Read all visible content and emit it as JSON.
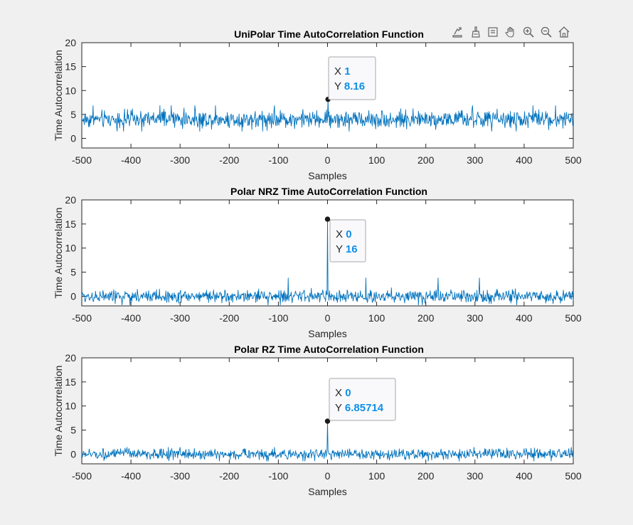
{
  "toolbar": {
    "icons": [
      "export-icon",
      "brush-icon",
      "datatip-icon",
      "pan-icon",
      "zoom-in-icon",
      "zoom-out-icon",
      "home-icon"
    ]
  },
  "colors": {
    "line": "#0072BD",
    "datatip_value": "#0F8FE8",
    "background": "#f0f0f0"
  },
  "chart_data": [
    {
      "type": "line",
      "title": "UniPolar Time AutoCorrelation Function",
      "xlabel": "Samples",
      "ylabel": "Time Autocorrelation",
      "xlim": [
        -500,
        500
      ],
      "ylim": [
        -2,
        20
      ],
      "xticks": [
        "-500",
        "-400",
        "-300",
        "-200",
        "-100",
        "0",
        "100",
        "200",
        "300",
        "400",
        "500"
      ],
      "yticks": [
        "0",
        "5",
        "10",
        "15",
        "20"
      ],
      "series": [
        {
          "description": "noisy autocorrelation, mean about 4, fluctuating roughly between 1.5 and 7, with a small peak near lag 0",
          "baseline": 4,
          "noise_range": [
            1.5,
            7
          ],
          "peak": {
            "x": 1,
            "y": 8.16
          }
        }
      ],
      "datatip": {
        "x_label": "X",
        "x_value": "1",
        "y_label": "Y",
        "y_value": "8.16",
        "x": 1,
        "y": 8.16
      }
    },
    {
      "type": "line",
      "title": "Polar NRZ Time AutoCorrelation Function",
      "xlabel": "Samples",
      "ylabel": "Time Autocorrelation",
      "xlim": [
        -500,
        500
      ],
      "ylim": [
        -2,
        20
      ],
      "xticks": [
        "-500",
        "-400",
        "-300",
        "-200",
        "-100",
        "0",
        "100",
        "200",
        "300",
        "400",
        "500"
      ],
      "yticks": [
        "0",
        "5",
        "10",
        "15",
        "20"
      ],
      "series": [
        {
          "description": "noisy autocorrelation around 0, fluctuating roughly between -1.8 and 4, with a sharp peak at lag 0",
          "baseline": 0,
          "noise_range": [
            -1.8,
            4
          ],
          "peak": {
            "x": 0,
            "y": 16
          }
        }
      ],
      "datatip": {
        "x_label": "X",
        "x_value": "0",
        "y_label": "Y",
        "y_value": "16",
        "x": 0,
        "y": 16
      }
    },
    {
      "type": "line",
      "title": "Polar RZ Time AutoCorrelation Function",
      "xlabel": "Samples",
      "ylabel": "Time Autocorrelation",
      "xlim": [
        -500,
        500
      ],
      "ylim": [
        -2,
        20
      ],
      "xticks": [
        "-500",
        "-400",
        "-300",
        "-200",
        "-100",
        "0",
        "100",
        "200",
        "300",
        "400",
        "500"
      ],
      "yticks": [
        "0",
        "5",
        "10",
        "15",
        "20"
      ],
      "series": [
        {
          "description": "noisy autocorrelation around 0, fluctuating roughly between -1.5 and 1.5, with a peak at lag 0",
          "baseline": 0,
          "noise_range": [
            -1.5,
            1.5
          ],
          "peak": {
            "x": 0,
            "y": 6.85714
          }
        }
      ],
      "datatip": {
        "x_label": "X",
        "x_value": "0",
        "y_label": "Y",
        "y_value": "6.85714",
        "x": 0,
        "y": 6.85714
      }
    }
  ]
}
